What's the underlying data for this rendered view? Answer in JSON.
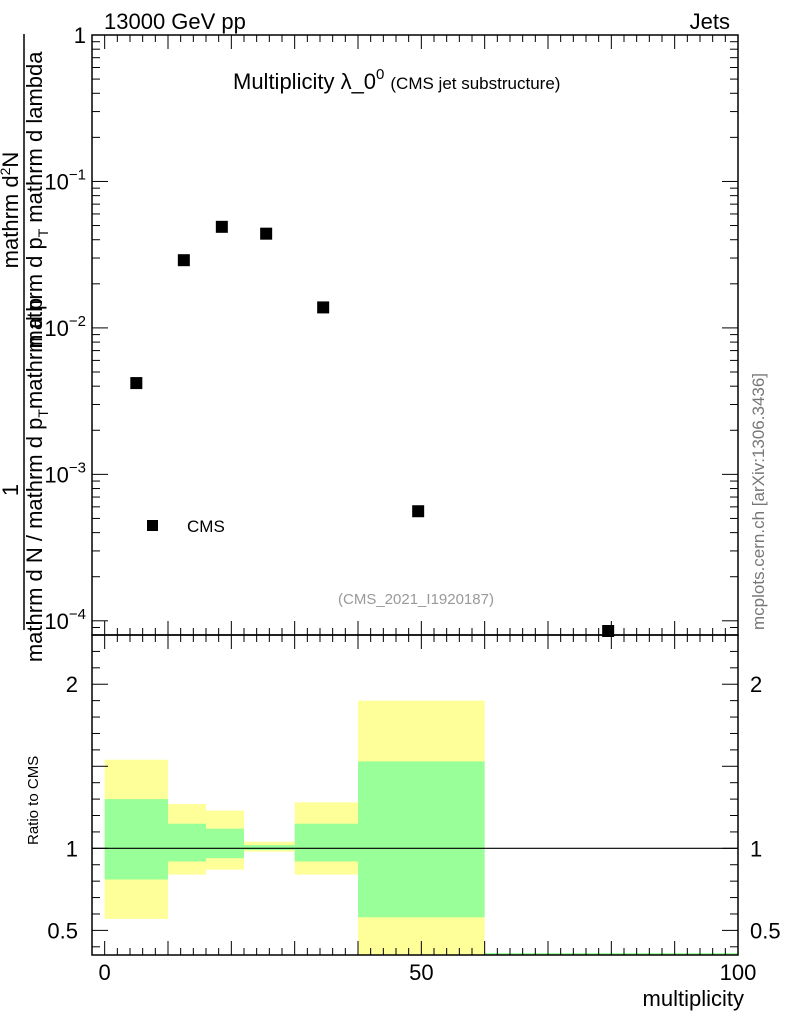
{
  "header": {
    "left": "13000 GeV pp",
    "right": "Jets"
  },
  "title": {
    "main": "Multiplicity λ_0",
    "sup": "0",
    "sub": "(CMS jet substructure)"
  },
  "ylabel_top": {
    "numerator": "1",
    "frac_num_1": "mathrm d",
    "frac_num_2": "2",
    "frac_num_3": "N",
    "frac_den": "mathrm d p",
    "frac_den_sub": "T",
    "frac_den_2": "mathrm d lambda",
    "denominator_1": "mathrm d N / mathrm d p",
    "denominator_sub": "T",
    "denominator_2": "mathrm d p"
  },
  "side_label": "mcplots.cern.ch [arXiv:1306.3436]",
  "analysis_id": "(CMS_2021_I1920187)",
  "legend": {
    "label": "CMS"
  },
  "ratio_ylabel": "Ratio to CMS",
  "xlabel": "multiplicity",
  "chart_data": [
    {
      "type": "scatter",
      "panel": "main",
      "yscale": "log",
      "ylim": [
        8e-05,
        1
      ],
      "xlim": [
        -2,
        100
      ],
      "y_ticks": [
        {
          "value": 1,
          "label": "1"
        },
        {
          "value": 0.1,
          "base": "10",
          "exp": "−1"
        },
        {
          "value": 0.01,
          "base": "10",
          "exp": "−2"
        },
        {
          "value": 0.001,
          "base": "10",
          "exp": "−3"
        },
        {
          "value": 0.0001,
          "base": "10",
          "exp": "−4"
        }
      ],
      "series": [
        {
          "name": "CMS",
          "x": [
            5,
            12.5,
            18.5,
            25.5,
            34.5,
            49.5,
            79.5
          ],
          "y": [
            0.0042,
            0.029,
            0.049,
            0.044,
            0.0138,
            0.00056,
            7.7e-05
          ]
        }
      ]
    },
    {
      "type": "area",
      "panel": "ratio",
      "ylim": [
        0.35,
        2.3
      ],
      "xlim": [
        -2,
        100
      ],
      "y_ticks": [
        {
          "value": 0.5,
          "label": "0.5"
        },
        {
          "value": 1,
          "label": "1"
        },
        {
          "value": 2,
          "label": "2"
        }
      ],
      "x_ticks": [
        {
          "value": 0,
          "label": "0"
        },
        {
          "value": 50,
          "label": "50"
        },
        {
          "value": 100,
          "label": "100"
        }
      ],
      "bands": [
        {
          "x0": 0,
          "x1": 10,
          "yellow": [
            0.57,
            1.54
          ],
          "green": [
            0.81,
            1.3
          ]
        },
        {
          "x0": 10,
          "x1": 16,
          "yellow": [
            0.84,
            1.27
          ],
          "green": [
            0.92,
            1.15
          ]
        },
        {
          "x0": 16,
          "x1": 22,
          "yellow": [
            0.87,
            1.23
          ],
          "green": [
            0.94,
            1.12
          ]
        },
        {
          "x0": 22,
          "x1": 30,
          "yellow": [
            0.98,
            1.04
          ],
          "green": [
            0.99,
            1.02
          ]
        },
        {
          "x0": 30,
          "x1": 40,
          "yellow": [
            0.84,
            1.28
          ],
          "green": [
            0.92,
            1.15
          ]
        },
        {
          "x0": 40,
          "x1": 60,
          "yellow": [
            0.3,
            1.9
          ],
          "green": [
            0.58,
            1.53
          ]
        }
      ],
      "reference_line": 1
    }
  ],
  "colors": {
    "yellow_band": "#ffff99",
    "green_band": "#99ff99",
    "marker": "#000000",
    "analysis_id": "#999999",
    "side_label": "#777777"
  }
}
